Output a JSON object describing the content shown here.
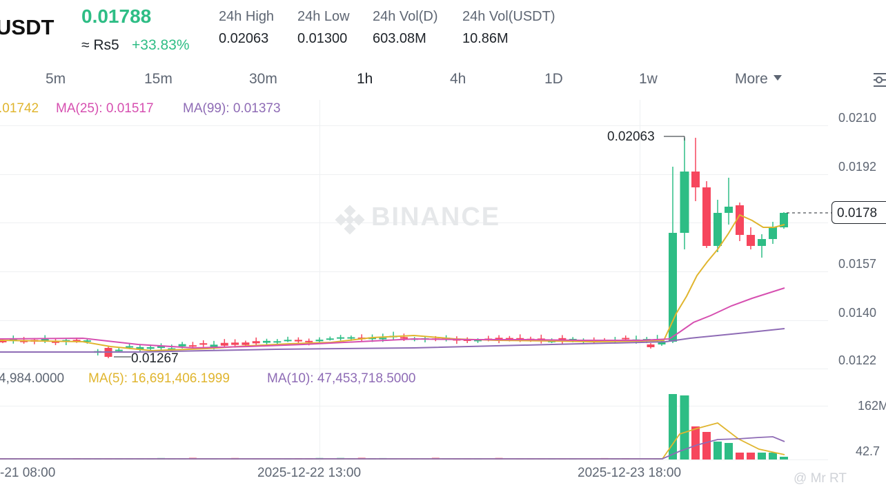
{
  "header": {
    "pair": "USDT",
    "last_price": "0.01788",
    "fiat_approx": "≈ Rs5",
    "change_pct": "+33.83%",
    "stats": [
      {
        "label": "24h High",
        "value": "0.02063"
      },
      {
        "label": "24h Low",
        "value": "0.01300"
      },
      {
        "label": "24h Vol(D)",
        "value": "603.08M"
      },
      {
        "label": "24h Vol(USDT)",
        "value": "10.86M"
      }
    ]
  },
  "intervals": {
    "items": [
      "5m",
      "15m",
      "30m",
      "1h",
      "4h",
      "1D",
      "1w"
    ],
    "active": "1h",
    "more_label": "More"
  },
  "indicators": {
    "ma7": ".01742",
    "ma25": "MA(25): 0.01517",
    "ma99": "MA(99): 0.01373"
  },
  "volume_indicators": {
    "vol": "4,984.0000",
    "ma5": "MA(5): 16,691,406.1999",
    "ma10": "MA(10): 47,453,718.5000"
  },
  "price_axis": [
    "0.0210",
    "0.0192",
    "0.0178",
    "0.0157",
    "0.0140",
    "0.0122"
  ],
  "volume_axis": [
    "162M",
    "42.7"
  ],
  "time_axis": [
    "-21 08:00",
    "2025-12-22 13:00",
    "2025-12-23 18:00"
  ],
  "annotations": {
    "high_marker": "0.02063",
    "low_marker": "0.01267"
  },
  "watermark": "BINANCE",
  "credit": "@ Mr RT",
  "colors": {
    "up": "#2ebd85",
    "down": "#f6465d",
    "ma7": "#e0b52e",
    "ma25": "#d64fb0",
    "ma99": "#8e6bb5"
  }
}
